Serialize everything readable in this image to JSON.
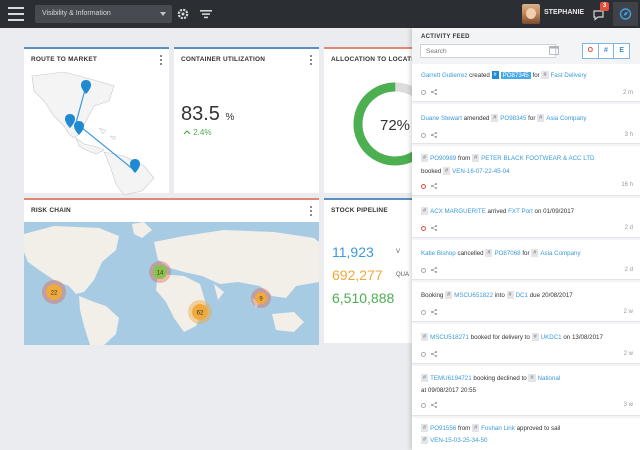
{
  "topbar": {
    "view_select": "Visibility & Information",
    "user_name": "STEPHANIE",
    "notification_count": "3"
  },
  "cards": {
    "route": {
      "title": "ROUTE TO MARKET"
    },
    "util": {
      "title": "CONTAINER UTILIZATION",
      "value": "83.5",
      "unit": "%",
      "delta": "2.4%"
    },
    "alloc": {
      "title": "ALLOCATION TO LOCATIO",
      "value": "72%",
      "fraction": 0.72
    },
    "risk": {
      "title": "RISK CHAIN",
      "clusters": [
        "22",
        "14",
        "9",
        "62"
      ]
    },
    "stock": {
      "title": "STOCK PIPELINE",
      "rows": [
        {
          "value": "11,923",
          "label": "V",
          "color": "#3c9ad9"
        },
        {
          "value": "692,277",
          "label": "QUA",
          "color": "#f0a93b"
        },
        {
          "value": "6,510,888",
          "label": "",
          "color": "#4caf50"
        }
      ]
    }
  },
  "feed": {
    "title": "ACTIVITY FEED",
    "search_placeholder": "Search",
    "filters": [
      "O",
      "#",
      "E"
    ],
    "items": [
      {
        "l1a": "Garrett Gutierrez",
        "l1b": "created",
        "tag1": "PO87345",
        "l1c": "for",
        "tag2": "Fast Delivery",
        "age": "2 m"
      },
      {
        "l1a": "Duane Stewart",
        "l1b": "amended",
        "tag1": "PO98345",
        "l1c": "for",
        "tag2": "Asia Company",
        "age": "3 h"
      },
      {
        "l1a": "PO90989",
        "l1b": "from",
        "tag1": "PETER BLACK FOOTWEAR & ACC LTD",
        "l2a": "booked",
        "tag2": "VEN-16-07-22-45-04",
        "age": "16 h"
      },
      {
        "l1a": "ACX MARGUERITE",
        "l1b": "arrived",
        "tag1": "FXT Port",
        "l1c": "on 01/09/2017",
        "age": "2 d"
      },
      {
        "l1a": "Katie Bishop",
        "l1b": "cancelled",
        "tag1": "PO87068",
        "l1c": "for",
        "tag2": "Asia Company",
        "age": "2 d"
      },
      {
        "l1a": "Booking",
        "tag1": "MSCU651822",
        "l1b": "into",
        "tag2": "DC1",
        "l1c": "due 20/08/2017",
        "age": "2 w"
      },
      {
        "l1a": "MSCU518271",
        "l1b": "booked for delivery to",
        "tag1": "UKDC1",
        "l1c": "on 13/08/2017",
        "age": "2 w"
      },
      {
        "l1a": "TEMU6194721",
        "l1b": "booking declined to",
        "tag1": "National",
        "l2a": "at 09/08/2017 20:55",
        "age": "3 w"
      },
      {
        "l1a": "PO91556",
        "l1b": "from",
        "tag1": "Foshan Link",
        "l1c": "approved to sail",
        "tag2": "VEN-15-03-25-34-50"
      }
    ]
  }
}
